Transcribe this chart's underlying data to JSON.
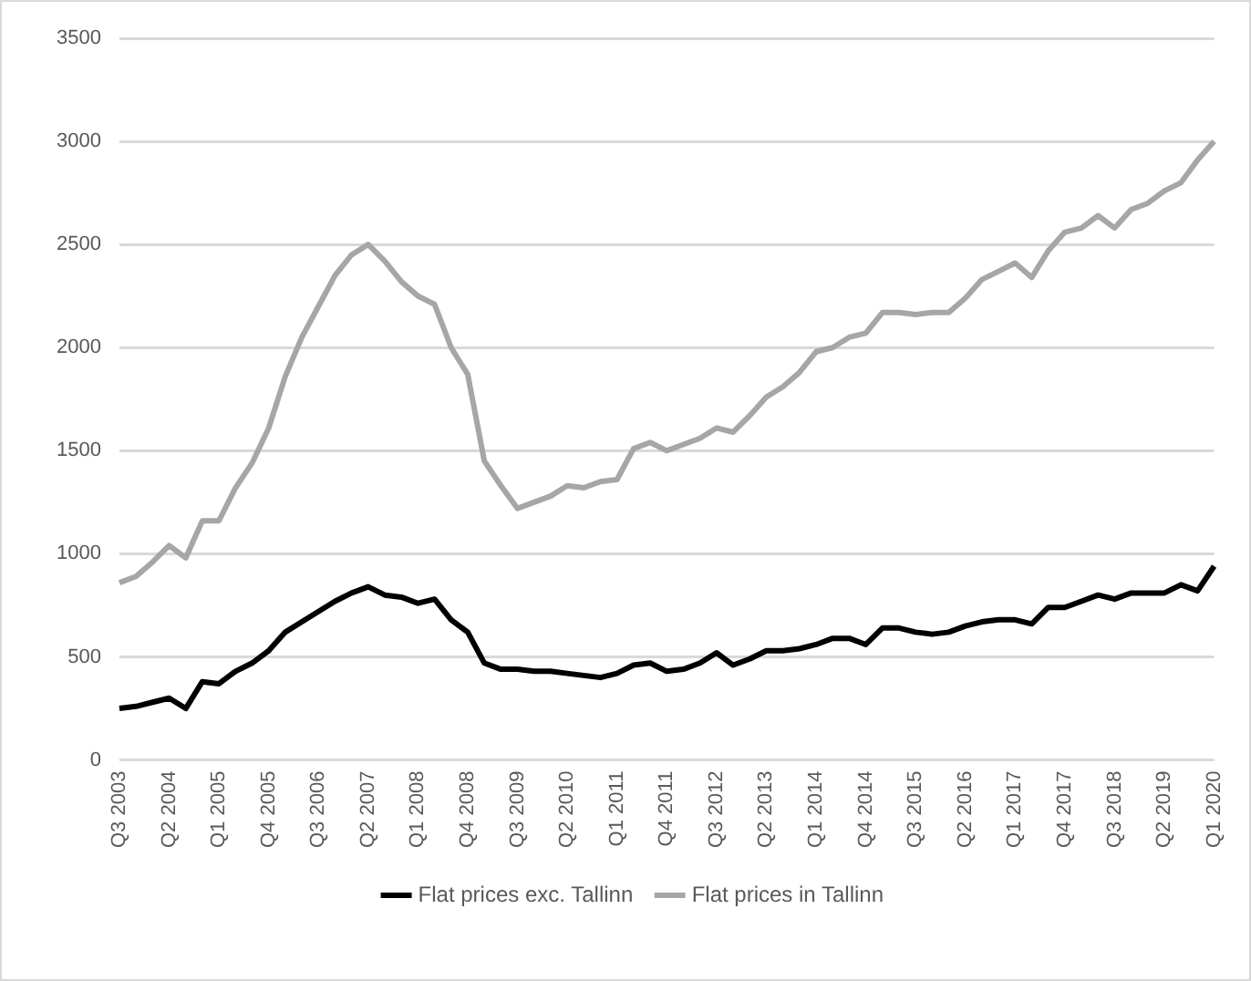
{
  "chart_data": {
    "type": "line",
    "categories": [
      "Q3 2003",
      null,
      null,
      "Q2 2004",
      null,
      null,
      "Q1 2005",
      null,
      null,
      "Q4 2005",
      null,
      null,
      "Q3 2006",
      null,
      null,
      "Q2 2007",
      null,
      null,
      "Q1 2008",
      null,
      null,
      "Q4 2008",
      null,
      null,
      "Q3 2009",
      null,
      null,
      "Q2 2010",
      null,
      null,
      "Q1 2011",
      null,
      null,
      "Q4 2011",
      null,
      null,
      "Q3 2012",
      null,
      null,
      "Q2 2013",
      null,
      null,
      "Q1 2014",
      null,
      null,
      "Q4 2014",
      null,
      null,
      "Q3 2015",
      null,
      null,
      "Q2 2016",
      null,
      null,
      "Q1 2017",
      null,
      null,
      "Q4 2017",
      null,
      null,
      "Q3 2018",
      null,
      null,
      "Q2 2019",
      null,
      null,
      "Q1 2020"
    ],
    "series": [
      {
        "name": "Flat prices exc. Tallinn",
        "color": "#000000",
        "values": [
          250,
          260,
          280,
          300,
          250,
          380,
          370,
          430,
          470,
          530,
          620,
          670,
          720,
          770,
          810,
          840,
          800,
          790,
          760,
          780,
          680,
          620,
          470,
          440,
          440,
          430,
          430,
          420,
          410,
          400,
          420,
          460,
          470,
          430,
          440,
          470,
          520,
          460,
          490,
          530,
          530,
          540,
          560,
          590,
          590,
          560,
          640,
          640,
          620,
          610,
          620,
          650,
          670,
          680,
          680,
          660,
          740,
          740,
          770,
          800,
          780,
          810,
          810,
          810,
          850,
          820,
          940
        ]
      },
      {
        "name": "Flat prices in Tallinn",
        "color": "#a6a6a6",
        "values": [
          860,
          890,
          960,
          1040,
          980,
          1160,
          1160,
          1320,
          1440,
          1610,
          1860,
          2050,
          2200,
          2350,
          2450,
          2500,
          2420,
          2320,
          2250,
          2210,
          2000,
          1870,
          1450,
          1330,
          1220,
          1250,
          1280,
          1330,
          1320,
          1350,
          1360,
          1510,
          1540,
          1500,
          1530,
          1560,
          1610,
          1590,
          1670,
          1760,
          1810,
          1880,
          1980,
          2000,
          2050,
          2070,
          2170,
          2170,
          2160,
          2170,
          2170,
          2240,
          2330,
          2370,
          2410,
          2340,
          2470,
          2560,
          2580,
          2640,
          2580,
          2670,
          2700,
          2760,
          2800,
          2910,
          3000
        ]
      }
    ],
    "ylim": [
      0,
      3500
    ],
    "yticks": [
      0,
      500,
      1000,
      1500,
      2000,
      2500,
      3000,
      3500
    ],
    "grid": "y",
    "legend": "bottom",
    "marker": "none",
    "line_style": "solid"
  }
}
